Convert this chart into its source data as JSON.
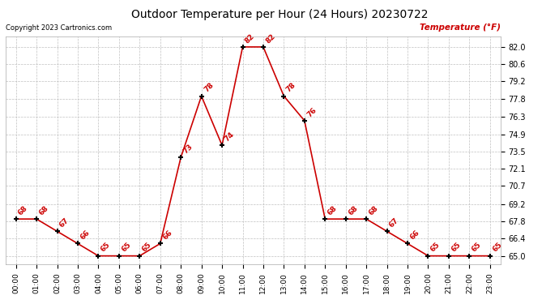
{
  "title": "Outdoor Temperature per Hour (24 Hours) 20230722",
  "copyright": "Copyright 2023 Cartronics.com",
  "ylabel": "Temperature (°F)",
  "hours": [
    "00:00",
    "01:00",
    "02:00",
    "03:00",
    "04:00",
    "05:00",
    "06:00",
    "07:00",
    "08:00",
    "09:00",
    "10:00",
    "11:00",
    "12:00",
    "13:00",
    "14:00",
    "15:00",
    "16:00",
    "17:00",
    "18:00",
    "19:00",
    "20:00",
    "21:00",
    "22:00",
    "23:00"
  ],
  "temps": [
    68,
    68,
    67,
    66,
    65,
    65,
    65,
    66,
    73,
    78,
    74,
    82,
    82,
    78,
    76,
    68,
    68,
    68,
    67,
    66,
    65,
    65,
    65,
    65
  ],
  "ylim_min": 64.3,
  "ylim_max": 82.85,
  "yticks": [
    65.0,
    66.4,
    67.8,
    69.2,
    70.7,
    72.1,
    73.5,
    74.9,
    76.3,
    77.8,
    79.2,
    80.6,
    82.0
  ],
  "line_color": "#cc0000",
  "marker_color": "#000000",
  "label_color": "#cc0000",
  "title_color": "#000000",
  "copyright_color": "#000000",
  "ylabel_color": "#cc0000",
  "bg_color": "#ffffff",
  "grid_color": "#c0c0c0"
}
